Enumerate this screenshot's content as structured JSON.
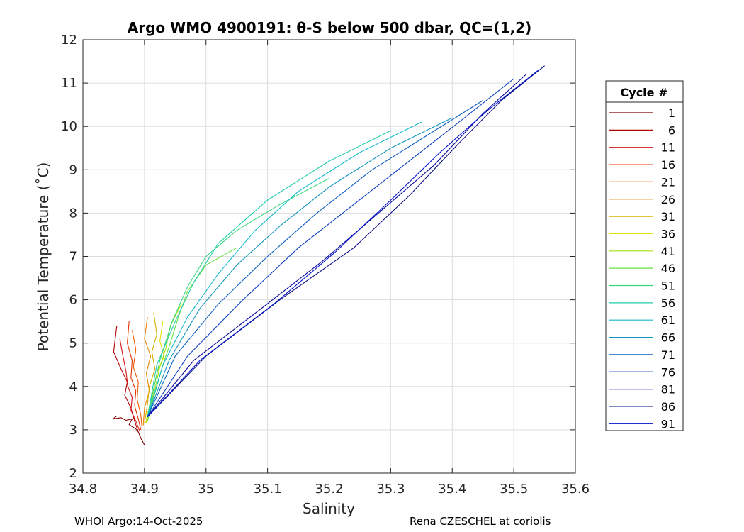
{
  "chart_data": {
    "type": "line",
    "title": "Argo WMO 4900191: θ-S below 500 dbar,  QC=(1,2)",
    "xlabel": "Salinity",
    "ylabel": "Potential Temperature (˚C)",
    "xlim": [
      34.8,
      35.6
    ],
    "ylim": [
      2,
      12
    ],
    "xticks": [
      "34.8",
      "34.9",
      "35",
      "35.1",
      "35.2",
      "35.3",
      "35.4",
      "35.5",
      "35.6"
    ],
    "yticks": [
      "2",
      "3",
      "4",
      "5",
      "6",
      "7",
      "8",
      "9",
      "10",
      "11",
      "12"
    ],
    "grid": true,
    "legend": {
      "title": "Cycle #",
      "placement": "right-outside",
      "entries": [
        "1",
        "6",
        "11",
        "16",
        "21",
        "26",
        "31",
        "36",
        "41",
        "46",
        "51",
        "56",
        "61",
        "66",
        "71",
        "76",
        "81",
        "86",
        "91"
      ],
      "colors": [
        "#7f0000",
        "#b30000",
        "#d41515",
        "#e23300",
        "#f05c00",
        "#e98500",
        "#d8b000",
        "#e2e100",
        "#a3e10a",
        "#66e040",
        "#38d67e",
        "#20ccaa",
        "#13b9cc",
        "#1295bc",
        "#1060c4",
        "#0b3ec4",
        "#06089a",
        "#060c83",
        "#0013c8"
      ]
    },
    "series": [
      {
        "name": "1",
        "x": [
          34.855,
          34.849,
          34.862,
          34.87,
          34.88,
          34.875,
          34.886,
          34.89,
          34.895,
          34.9
        ],
        "y": [
          3.32,
          3.25,
          3.28,
          3.22,
          3.25,
          3.12,
          3.02,
          2.95,
          2.78,
          2.65
        ]
      },
      {
        "name": "6",
        "x": [
          34.855,
          34.85,
          34.862,
          34.872,
          34.868,
          34.878,
          34.884,
          34.89
        ],
        "y": [
          5.4,
          4.8,
          4.4,
          4.1,
          3.8,
          3.5,
          3.2,
          2.95
        ]
      },
      {
        "name": "11",
        "x": [
          34.86,
          34.865,
          34.87,
          34.873,
          34.88,
          34.878,
          34.886,
          34.892
        ],
        "y": [
          5.1,
          4.7,
          4.35,
          4.0,
          3.75,
          3.45,
          3.2,
          2.98
        ]
      },
      {
        "name": "16",
        "x": [
          34.875,
          34.872,
          34.88,
          34.878,
          34.886,
          34.884,
          34.89,
          34.894
        ],
        "y": [
          5.5,
          5.0,
          4.6,
          4.2,
          3.9,
          3.55,
          3.25,
          3.0
        ]
      },
      {
        "name": "21",
        "x": [
          34.88,
          34.886,
          34.882,
          34.89,
          34.888,
          34.894,
          34.896
        ],
        "y": [
          5.3,
          4.85,
          4.45,
          4.1,
          3.7,
          3.35,
          3.05
        ]
      },
      {
        "name": "26",
        "x": [
          34.905,
          34.9,
          34.91,
          34.903,
          34.908,
          34.9,
          34.898
        ],
        "y": [
          5.6,
          5.1,
          4.7,
          4.3,
          3.9,
          3.5,
          3.1
        ]
      },
      {
        "name": "31",
        "x": [
          34.915,
          34.92,
          34.912,
          34.917,
          34.908,
          34.905,
          34.9
        ],
        "y": [
          5.7,
          5.2,
          4.8,
          4.4,
          4.0,
          3.6,
          3.15
        ]
      },
      {
        "name": "36",
        "x": [
          34.93,
          34.925,
          34.932,
          34.92,
          34.915,
          34.908,
          34.902
        ],
        "y": [
          5.5,
          5.05,
          4.7,
          4.3,
          3.95,
          3.55,
          3.15
        ]
      },
      {
        "name": "41",
        "x": [
          34.96,
          34.942,
          34.935,
          34.925,
          34.918,
          34.91,
          34.903
        ],
        "y": [
          5.9,
          5.4,
          4.9,
          4.45,
          4.0,
          3.6,
          3.15
        ]
      },
      {
        "name": "46",
        "x": [
          35.05,
          35.0,
          34.97,
          34.955,
          34.942,
          34.93,
          34.918,
          34.905
        ],
        "y": [
          7.2,
          6.8,
          6.2,
          5.6,
          5.0,
          4.5,
          3.9,
          3.2
        ]
      },
      {
        "name": "51",
        "x": [
          35.2,
          35.12,
          35.05,
          35.0,
          34.97,
          34.945,
          34.925,
          34.905
        ],
        "y": [
          8.8,
          8.2,
          7.6,
          7.0,
          6.3,
          5.5,
          4.6,
          3.3
        ]
      },
      {
        "name": "56",
        "x": [
          35.3,
          35.2,
          35.1,
          35.02,
          34.98,
          34.95,
          34.92,
          34.905
        ],
        "y": [
          9.9,
          9.2,
          8.3,
          7.3,
          6.4,
          5.5,
          4.5,
          3.3
        ]
      },
      {
        "name": "61",
        "x": [
          35.35,
          35.25,
          35.15,
          35.08,
          35.02,
          34.97,
          34.93,
          34.905
        ],
        "y": [
          10.1,
          9.4,
          8.5,
          7.6,
          6.6,
          5.6,
          4.5,
          3.3
        ]
      },
      {
        "name": "66",
        "x": [
          35.4,
          35.3,
          35.2,
          35.12,
          35.05,
          34.99,
          34.94,
          34.905
        ],
        "y": [
          10.2,
          9.5,
          8.6,
          7.7,
          6.8,
          5.8,
          4.6,
          3.3
        ]
      },
      {
        "name": "71",
        "x": [
          35.45,
          35.36,
          35.27,
          35.18,
          35.1,
          35.02,
          34.95,
          34.905
        ],
        "y": [
          10.6,
          9.8,
          9.0,
          8.0,
          7.0,
          5.9,
          4.7,
          3.3
        ]
      },
      {
        "name": "76",
        "x": [
          35.5,
          35.42,
          35.33,
          35.24,
          35.15,
          35.06,
          34.97,
          34.905
        ],
        "y": [
          11.1,
          10.2,
          9.2,
          8.2,
          7.2,
          6.0,
          4.7,
          3.3
        ]
      },
      {
        "name": "81",
        "x": [
          35.52,
          35.45,
          35.37,
          35.28,
          35.19,
          35.09,
          34.98,
          34.905
        ],
        "y": [
          11.2,
          10.3,
          9.1,
          8.0,
          6.9,
          5.8,
          4.6,
          3.3
        ]
      },
      {
        "name": "86",
        "x": [
          35.55,
          35.48,
          35.41,
          35.33,
          35.24,
          35.12,
          35.0,
          34.905
        ],
        "y": [
          11.4,
          10.6,
          9.6,
          8.4,
          7.2,
          6.0,
          4.7,
          3.3
        ]
      },
      {
        "name": "91",
        "x": [
          35.54,
          35.46,
          35.38,
          35.3,
          35.21,
          35.11,
          34.99,
          34.905
        ],
        "y": [
          11.3,
          10.4,
          9.4,
          8.3,
          7.1,
          5.9,
          4.6,
          3.3
        ]
      }
    ]
  },
  "footer": {
    "left": "WHOI Argo:14-Oct-2025",
    "right": "Rena CZESCHEL at coriolis"
  }
}
